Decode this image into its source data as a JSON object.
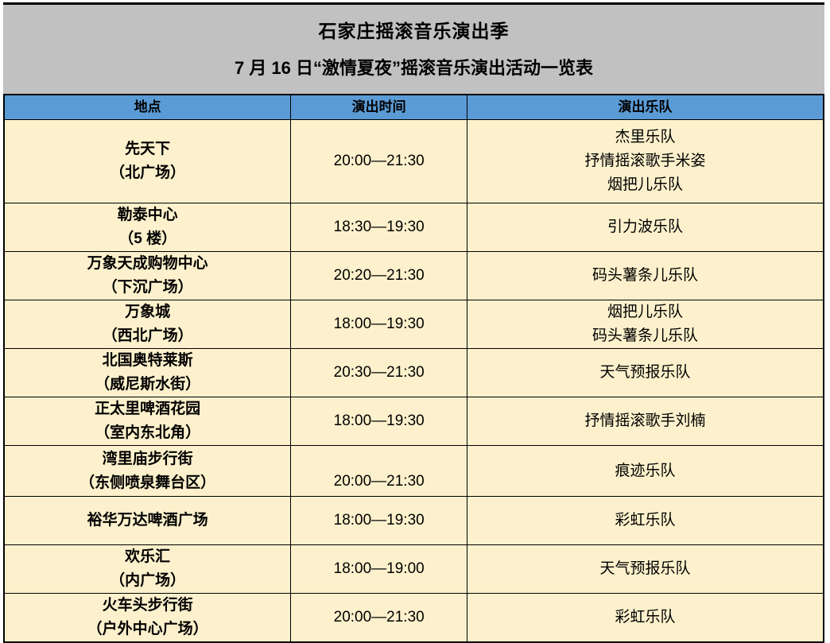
{
  "banner": {
    "title": "石家庄摇滚音乐演出季",
    "subtitle": "7 月 16 日“激情夏夜”摇滚音乐演出活动一览表"
  },
  "table": {
    "columns": [
      "地点",
      "演出时间",
      "演出乐队"
    ],
    "rows": [
      {
        "location": "先天下\n（北广场）",
        "time": "20:00—21:30",
        "bands": "杰里乐队\n抒情摇滚歌手米姿\n烟把儿乐队"
      },
      {
        "location": "勒泰中心\n（5 楼）",
        "time": "18:30—19:30",
        "bands": "引力波乐队"
      },
      {
        "location": "万象天成购物中心\n（下沉广场）",
        "time": "20:20—21:30",
        "bands": "码头薯条儿乐队"
      },
      {
        "location": "万象城\n（西北广场）",
        "time": "18:00—19:30",
        "bands": "烟把儿乐队\n码头薯条儿乐队"
      },
      {
        "location": "北国奥特莱斯\n（威尼斯水街）",
        "time": "20:30—21:30",
        "bands": "天气预报乐队"
      },
      {
        "location": "正太里啤酒花园\n（室内东北角）",
        "time": "18:00—19:30",
        "bands": "抒情摇滚歌手刘楠"
      },
      {
        "location": "湾里庙步行街\n（东侧喷泉舞台区）",
        "time": "20:00—21:30",
        "bands": "痕迹乐队"
      },
      {
        "location": "裕华万达啤酒广场",
        "time": "18:00—19:30",
        "bands": "彩虹乐队"
      },
      {
        "location": "欢乐汇\n（内广场）",
        "time": "18:00—19:00",
        "bands": "天气预报乐队"
      },
      {
        "location": "火车头步行街\n（户外中心广场）",
        "time": "20:00—21:30",
        "bands": "彩虹乐队"
      }
    ]
  },
  "colors": {
    "banner_background": "#C1C1C1",
    "header_background": "#5B9BD5",
    "row_background": "#FCF1CC",
    "border": "#000000",
    "text": "#000000"
  }
}
